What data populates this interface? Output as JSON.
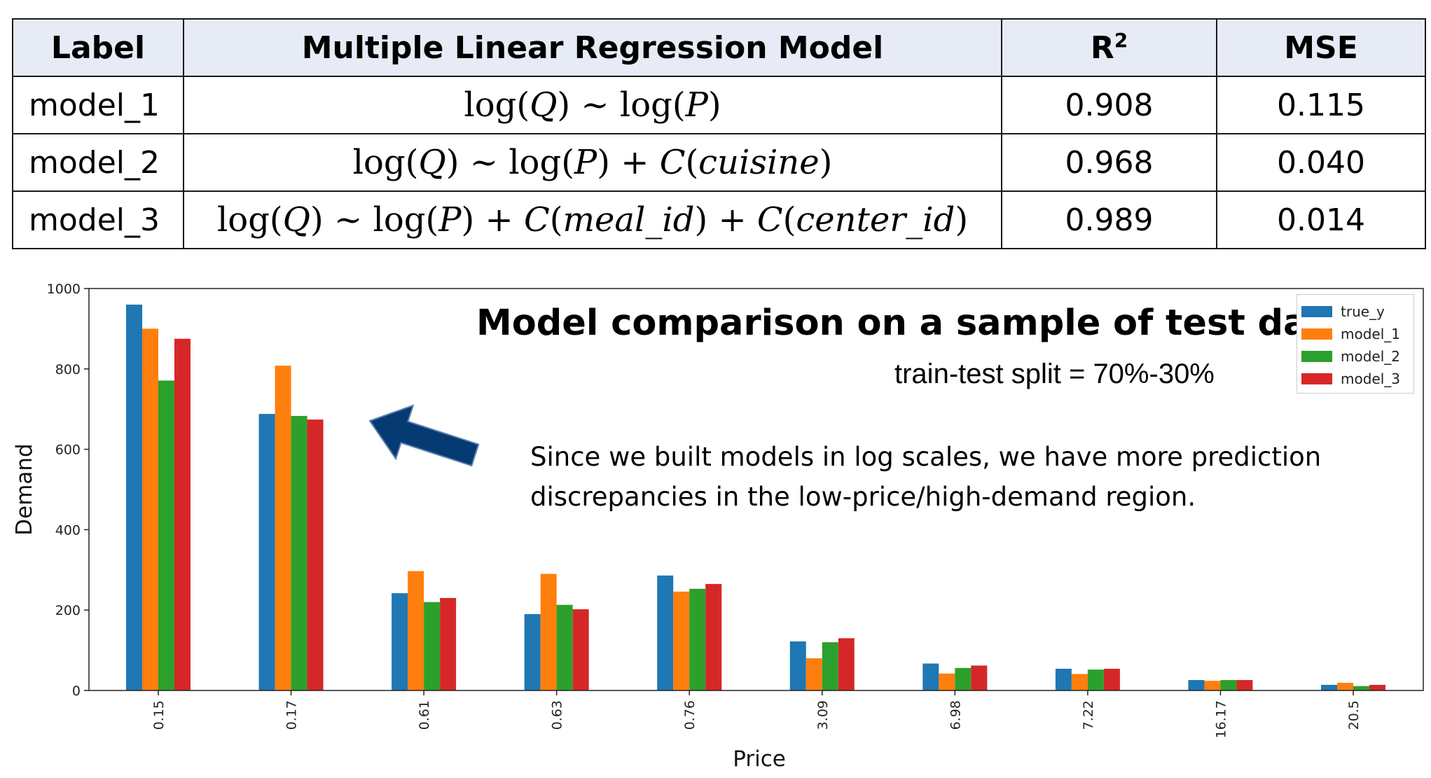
{
  "table": {
    "headers": {
      "label": "Label",
      "model": "Multiple Linear Regression Model",
      "r2_base": "R",
      "r2_sup": "2",
      "mse": "MSE"
    },
    "rows": [
      {
        "label": "model_1",
        "r2": "0.908",
        "mse": "0.115"
      },
      {
        "label": "model_2",
        "r2": "0.968",
        "mse": "0.040"
      },
      {
        "label": "model_3",
        "r2": "0.989",
        "mse": "0.014"
      }
    ],
    "formula_tokens": {
      "log": "log",
      "Q": "Q",
      "P": "P",
      "tilde": "~",
      "plus": "+",
      "C": "C",
      "lparen": "(",
      "rparen": ")",
      "cuisine": "cuisine",
      "meal_id": "meal_id",
      "center_id": "center_id"
    }
  },
  "chart_data": {
    "type": "bar",
    "title": "Model comparison on a sample of test data",
    "subtitle": "train-test split = 70%-30%",
    "annotation": "Since we built models in log scales, we have more prediction discrepancies in the low-price/high-demand region.",
    "xlabel": "Price",
    "ylabel": "Demand",
    "ylim": [
      0,
      1000
    ],
    "yticks": [
      "0",
      "200",
      "400",
      "600",
      "800",
      "1000"
    ],
    "categories": [
      "0.15",
      "0.17",
      "0.61",
      "0.63",
      "0.76",
      "3.09",
      "6.98",
      "7.22",
      "16.17",
      "20.5"
    ],
    "legend_position": "top-right",
    "grid": false,
    "series": [
      {
        "name": "true_y",
        "color": "#1f77b4",
        "values": [
          960,
          688,
          242,
          190,
          286,
          122,
          67,
          54,
          26,
          14
        ]
      },
      {
        "name": "model_1",
        "color": "#ff7f0e",
        "values": [
          900,
          808,
          297,
          290,
          246,
          80,
          42,
          41,
          24,
          19
        ]
      },
      {
        "name": "model_2",
        "color": "#2ca02c",
        "values": [
          771,
          683,
          220,
          213,
          253,
          120,
          56,
          52,
          26,
          11
        ]
      },
      {
        "name": "model_3",
        "color": "#d62728",
        "values": [
          875,
          674,
          230,
          202,
          265,
          130,
          62,
          54,
          26,
          14
        ]
      }
    ]
  },
  "arrow": {
    "color": "#063a73",
    "icon": "left-arrow-icon"
  }
}
